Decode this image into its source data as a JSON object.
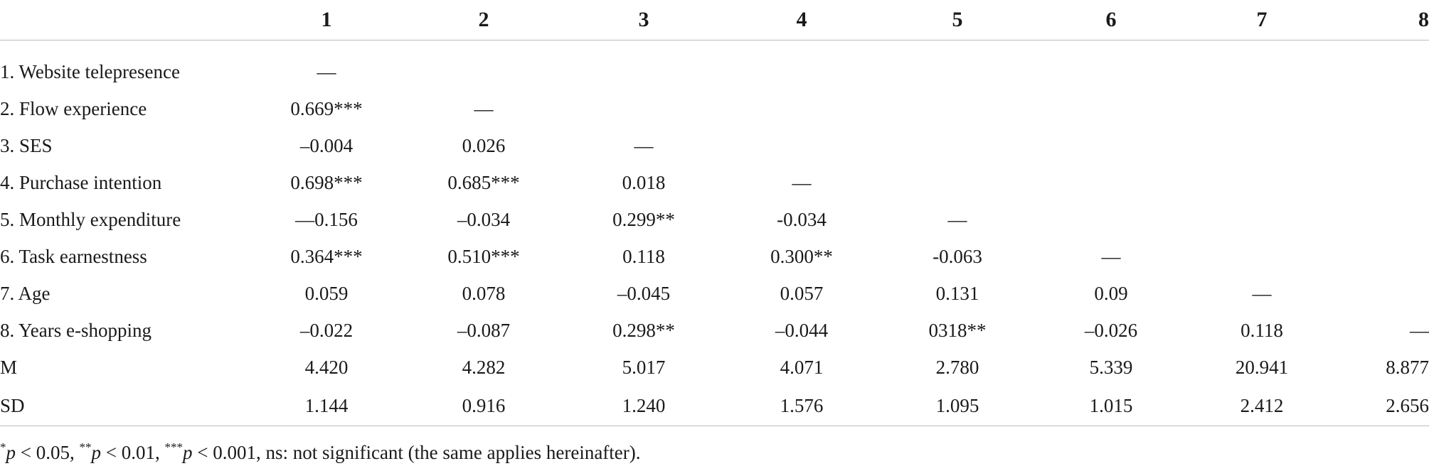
{
  "table": {
    "columns": [
      "",
      "1",
      "2",
      "3",
      "4",
      "5",
      "6",
      "7",
      "8"
    ],
    "rows": [
      {
        "label": "1. Website telepresence",
        "cells": [
          "—",
          "",
          "",
          "",
          "",
          "",
          "",
          ""
        ]
      },
      {
        "label": "2. Flow experience",
        "cells": [
          "0.669***",
          "—",
          "",
          "",
          "",
          "",
          "",
          ""
        ]
      },
      {
        "label": "3. SES",
        "cells": [
          "–0.004",
          "0.026",
          "—",
          "",
          "",
          "",
          "",
          ""
        ]
      },
      {
        "label": "4. Purchase intention",
        "cells": [
          "0.698***",
          "0.685***",
          "0.018",
          "—",
          "",
          "",
          "",
          ""
        ]
      },
      {
        "label": "5. Monthly expenditure",
        "cells": [
          "—0.156",
          "–0.034",
          "0.299**",
          "-0.034",
          "—",
          "",
          "",
          ""
        ]
      },
      {
        "label": "6. Task earnestness",
        "cells": [
          "0.364***",
          "0.510***",
          "0.118",
          "0.300**",
          "-0.063",
          "—",
          "",
          ""
        ]
      },
      {
        "label": "7. Age",
        "cells": [
          "0.059",
          "0.078",
          "–0.045",
          "0.057",
          "0.131",
          "0.09",
          "—",
          ""
        ]
      },
      {
        "label": "8. Years e-shopping",
        "cells": [
          "–0.022",
          "–0.087",
          "0.298**",
          "–0.044",
          "0318**",
          "–0.026",
          "0.118",
          "—"
        ]
      },
      {
        "label": "M",
        "cells": [
          "4.420",
          "4.282",
          "5.017",
          "4.071",
          "2.780",
          "5.339",
          "20.941",
          "8.877"
        ]
      },
      {
        "label": "SD",
        "cells": [
          "1.144",
          "0.916",
          "1.240",
          "1.576",
          "1.095",
          "1.015",
          "2.412",
          "2.656"
        ]
      }
    ]
  },
  "footnote": {
    "star1": "*",
    "p1": "p",
    "t1": " < 0.05, ",
    "star2": "**",
    "p2": "p",
    "t2": " < 0.01, ",
    "star3": "***",
    "p3": "p",
    "t3": " < 0.001, ns: not significant (the same applies hereinafter)."
  }
}
